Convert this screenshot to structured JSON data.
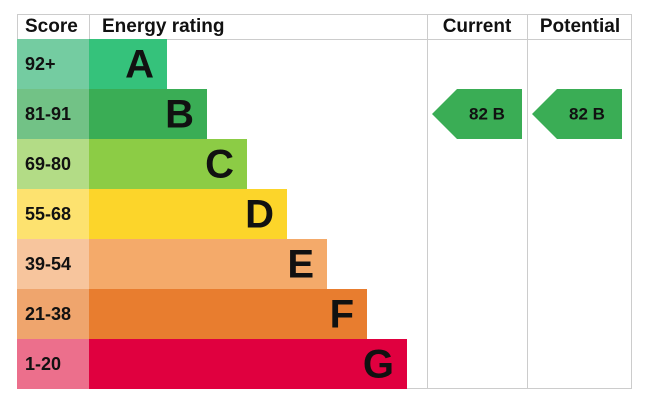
{
  "header": {
    "score": "Score",
    "rating": "Energy rating",
    "current": "Current",
    "potential": "Potential"
  },
  "rows": [
    {
      "score": "92+",
      "letter": "A"
    },
    {
      "score": "81-91",
      "letter": "B"
    },
    {
      "score": "69-80",
      "letter": "C"
    },
    {
      "score": "55-68",
      "letter": "D"
    },
    {
      "score": "39-54",
      "letter": "E"
    },
    {
      "score": "21-38",
      "letter": "F"
    },
    {
      "score": "1-20",
      "letter": "G"
    }
  ],
  "current": "82 B",
  "potential": "82 B"
}
